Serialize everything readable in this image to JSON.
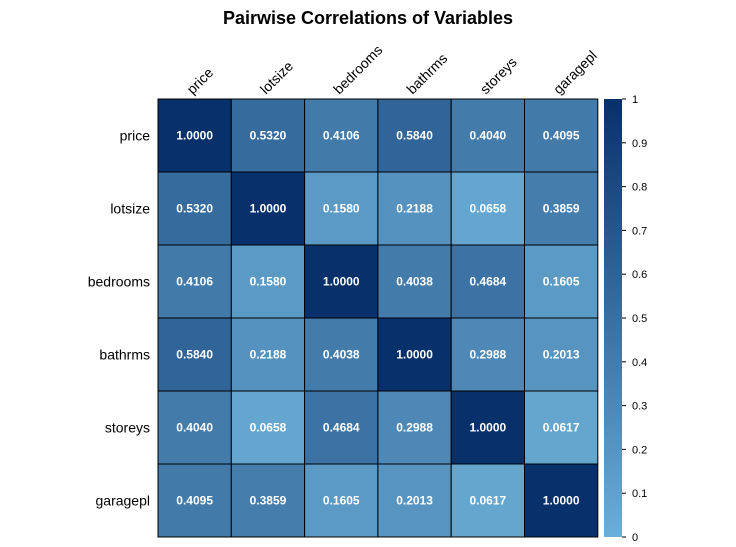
{
  "chart_data": {
    "type": "heatmap",
    "title": "Pairwise Correlations of Variables",
    "rows": [
      "price",
      "lotsize",
      "bedrooms",
      "bathrms",
      "storeys",
      "garagepl"
    ],
    "columns": [
      "price",
      "lotsize",
      "bedrooms",
      "bathrms",
      "storeys",
      "garagepl"
    ],
    "values": [
      [
        1.0,
        0.532,
        0.4106,
        0.584,
        0.404,
        0.4095
      ],
      [
        0.532,
        1.0,
        0.158,
        0.2188,
        0.0658,
        0.3859
      ],
      [
        0.4106,
        0.158,
        1.0,
        0.4038,
        0.4684,
        0.1605
      ],
      [
        0.584,
        0.2188,
        0.4038,
        1.0,
        0.2988,
        0.2013
      ],
      [
        0.404,
        0.0658,
        0.4684,
        0.2988,
        1.0,
        0.0617
      ],
      [
        0.4095,
        0.3859,
        0.1605,
        0.2013,
        0.0617,
        1.0
      ]
    ],
    "cell_labels": [
      [
        "1.0000",
        "0.5320",
        "0.4106",
        "0.5840",
        "0.4040",
        "0.4095"
      ],
      [
        "0.5320",
        "1.0000",
        "0.1580",
        "0.2188",
        "0.0658",
        "0.3859"
      ],
      [
        "0.4106",
        "0.1580",
        "1.0000",
        "0.4038",
        "0.4684",
        "0.1605"
      ],
      [
        "0.5840",
        "0.2188",
        "0.4038",
        "1.0000",
        "0.2988",
        "0.2013"
      ],
      [
        "0.4040",
        "0.0658",
        "0.4684",
        "0.2988",
        "1.0000",
        "0.0617"
      ],
      [
        "0.4095",
        "0.3859",
        "0.1605",
        "0.2013",
        "0.0617",
        "1.0000"
      ]
    ],
    "colorbar": {
      "range": [
        0,
        1
      ],
      "ticks": [
        "0",
        "0.1",
        "0.2",
        "0.3",
        "0.4",
        "0.5",
        "0.6",
        "0.7",
        "0.8",
        "0.9",
        "1"
      ],
      "low_color": "#6baed6",
      "high_color": "#08306b"
    },
    "cell_text_color": "#ffffff",
    "grid": true,
    "legend": "right"
  }
}
